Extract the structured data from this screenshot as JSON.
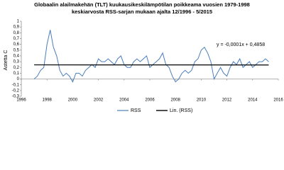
{
  "chart_data": {
    "type": "line",
    "title": "Globaalin alailmakehän (TLT) kuukausikeskilämpötilan poikkeama vuosien 1979-1998",
    "subtitle": "keskiarvosta RSS-sarjan mukaan ajalta 12/1996 - 5/2015",
    "y_label": "Astetta C",
    "annotation": "y = -0,0001x + 0,4858",
    "xlim": [
      1996,
      2016
    ],
    "xticks": [
      1996,
      1998,
      2000,
      2002,
      2004,
      2006,
      2008,
      2010,
      2012,
      2014,
      2016
    ],
    "ylim": [
      -0.3,
      1
    ],
    "yticks": [
      {
        "value": -0.3,
        "label": "-0,3"
      },
      {
        "value": -0.2,
        "label": "-0,2"
      },
      {
        "value": -0.1,
        "label": "-0,1"
      },
      0,
      {
        "value": 0.1,
        "label": "0,1"
      },
      {
        "value": 0.2,
        "label": "0,2"
      },
      {
        "value": 0.3,
        "label": "0,3"
      },
      {
        "value": 0.4,
        "label": "0,4"
      },
      {
        "value": 0.5,
        "label": "0,5"
      },
      {
        "value": 0.6,
        "label": "0,6"
      },
      {
        "value": 0.7,
        "label": "0,7"
      },
      {
        "value": 0.8,
        "label": "0,8"
      },
      {
        "value": 0.9,
        "label": "0,9"
      },
      1
    ],
    "grid": false,
    "legend": "bottom",
    "series": [
      {
        "name": "RSS",
        "color": "#4a7ebb",
        "x": [
          1997,
          1997.25,
          1997.5,
          1997.75,
          1998,
          1998.25,
          1998.5,
          1998.75,
          1999,
          1999.25,
          1999.5,
          1999.75,
          2000,
          2000.25,
          2000.5,
          2000.75,
          2001,
          2001.25,
          2001.5,
          2001.75,
          2002,
          2002.25,
          2002.5,
          2002.75,
          2003,
          2003.25,
          2003.5,
          2003.75,
          2004,
          2004.25,
          2004.5,
          2004.75,
          2005,
          2005.25,
          2005.5,
          2005.75,
          2006,
          2006.25,
          2006.5,
          2006.75,
          2007,
          2007.25,
          2007.5,
          2007.75,
          2008,
          2008.25,
          2008.5,
          2008.75,
          2009,
          2009.25,
          2009.5,
          2009.75,
          2010,
          2010.25,
          2010.5,
          2010.75,
          2011,
          2011.25,
          2011.5,
          2011.75,
          2012,
          2012.25,
          2012.5,
          2012.75,
          2013,
          2013.25,
          2013.5,
          2013.75,
          2014,
          2014.25,
          2014.5,
          2014.75,
          2015,
          2015.25
        ],
        "values": [
          0.0,
          0.05,
          0.15,
          0.2,
          0.6,
          0.85,
          0.55,
          0.4,
          0.15,
          0.05,
          0.1,
          0.05,
          -0.05,
          0.1,
          0.1,
          0.05,
          0.15,
          0.2,
          0.25,
          0.2,
          0.35,
          0.3,
          0.3,
          0.35,
          0.3,
          0.25,
          0.35,
          0.4,
          0.25,
          0.2,
          0.2,
          0.3,
          0.35,
          0.3,
          0.35,
          0.4,
          0.2,
          0.25,
          0.3,
          0.35,
          0.45,
          0.25,
          0.2,
          0.05,
          -0.05,
          0.0,
          0.1,
          0.15,
          0.1,
          0.15,
          0.3,
          0.35,
          0.5,
          0.55,
          0.45,
          0.3,
          0.0,
          0.1,
          0.2,
          0.1,
          0.05,
          0.2,
          0.3,
          0.25,
          0.35,
          0.2,
          0.25,
          0.3,
          0.2,
          0.25,
          0.3,
          0.3,
          0.35,
          0.3
        ]
      },
      {
        "name": "Lin. (RSS)",
        "color": "#000000",
        "x": [
          1997,
          2015.25
        ],
        "values": [
          0.245,
          0.243
        ]
      }
    ]
  }
}
